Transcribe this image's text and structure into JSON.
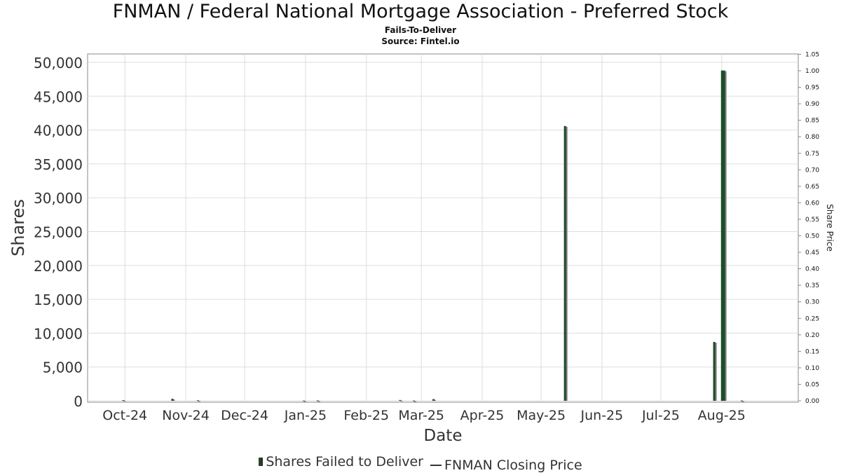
{
  "title": "FNMAN / Federal National Mortgage Association - Preferred Stock",
  "subtitle": "Fails-To-Deliver",
  "source": "Source: Fintel.io",
  "legend": {
    "bars_label": "Shares Failed to Deliver",
    "line_label": "FNMAN Closing Price"
  },
  "colors": {
    "bar": "#1b4d2a",
    "bar_shadow": "#7a7a7a",
    "grid": "#dddddd",
    "axis": "#888888",
    "price_line": "#333333"
  },
  "chart_data": {
    "type": "bar",
    "xlabel": "Date",
    "ylabel": "Shares",
    "y2label": "Share Price",
    "ylim": [
      0,
      51000
    ],
    "y2lim": [
      0,
      1.05
    ],
    "xlim": [
      "2024-09-12",
      "2025-09-09"
    ],
    "grid": true,
    "legend_position": "bottom",
    "y_ticks": [
      "0",
      "5,000",
      "10,000",
      "15,000",
      "20,000",
      "25,000",
      "30,000",
      "35,000",
      "40,000",
      "45,000",
      "50,000"
    ],
    "y2_ticks": [
      "0.00",
      "0.05",
      "0.10",
      "0.15",
      "0.20",
      "0.25",
      "0.30",
      "0.35",
      "0.40",
      "0.45",
      "0.50",
      "0.55",
      "0.60",
      "0.65",
      "0.70",
      "0.75",
      "0.80",
      "0.85",
      "0.90",
      "0.95",
      "1.00",
      "1.05"
    ],
    "x_ticks": [
      {
        "label": "Oct-24",
        "date": "2024-10-01"
      },
      {
        "label": "Nov-24",
        "date": "2024-11-01"
      },
      {
        "label": "Dec-24",
        "date": "2024-12-01"
      },
      {
        "label": "Jan-25",
        "date": "2025-01-01"
      },
      {
        "label": "Feb-25",
        "date": "2025-02-01"
      },
      {
        "label": "Mar-25",
        "date": "2025-03-01"
      },
      {
        "label": "Apr-25",
        "date": "2025-04-01"
      },
      {
        "label": "May-25",
        "date": "2025-05-01"
      },
      {
        "label": "Jun-25",
        "date": "2025-06-01"
      },
      {
        "label": "Jul-25",
        "date": "2025-07-01"
      },
      {
        "label": "Aug-25",
        "date": "2025-08-01"
      }
    ],
    "series": [
      {
        "name": "Shares Failed to Deliver",
        "points": [
          {
            "date": "2024-09-30",
            "value": 100
          },
          {
            "date": "2024-10-25",
            "value": 300
          },
          {
            "date": "2024-11-07",
            "value": 80
          },
          {
            "date": "2024-12-31",
            "value": 30
          },
          {
            "date": "2025-01-07",
            "value": 60
          },
          {
            "date": "2025-02-18",
            "value": 120
          },
          {
            "date": "2025-02-25",
            "value": 40
          },
          {
            "date": "2025-03-07",
            "value": 250
          },
          {
            "date": "2025-05-13",
            "value": 40600
          },
          {
            "date": "2025-07-28",
            "value": 8700
          },
          {
            "date": "2025-08-01",
            "value": 48800
          },
          {
            "date": "2025-08-02",
            "value": 48800
          },
          {
            "date": "2025-08-11",
            "value": 50
          }
        ]
      },
      {
        "name": "FNMAN Closing Price",
        "points": []
      }
    ]
  }
}
